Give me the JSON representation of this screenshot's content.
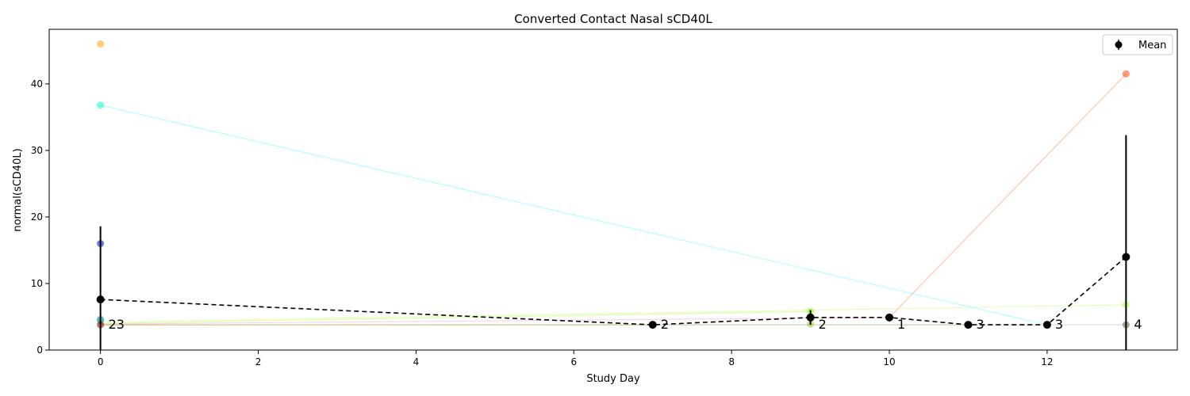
{
  "chart_data": {
    "type": "line",
    "title": "Converted Contact Nasal sCD40L",
    "xlabel": "Study Day",
    "ylabel": "normal(sCD40L)",
    "xlim": [
      -0.65,
      13.65
    ],
    "ylim": [
      0,
      48.2
    ],
    "xticks": [
      0,
      2,
      4,
      6,
      8,
      10,
      12
    ],
    "yticks": [
      0,
      10,
      20,
      30,
      40
    ],
    "grid": false,
    "legend": {
      "position": "top-right",
      "entries": [
        "Mean"
      ]
    },
    "series": [
      {
        "color": "#00ffff",
        "x": [
          0,
          12
        ],
        "y": [
          36.8,
          3.8
        ]
      },
      {
        "color": "#ff4500",
        "x": [
          10,
          13
        ],
        "y": [
          4.9,
          41.5
        ]
      },
      {
        "color": "#adff2f",
        "x": [
          0,
          13
        ],
        "y": [
          4.2,
          6.8
        ]
      },
      {
        "color": "#7fff00",
        "x": [
          0,
          9
        ],
        "y": [
          4.0,
          5.8
        ]
      },
      {
        "color": "#ff69b4",
        "x": [
          0,
          10
        ],
        "y": [
          3.9,
          4.9
        ]
      },
      {
        "color": "#9acd32",
        "x": [
          0,
          11
        ],
        "y": [
          3.8,
          3.8
        ]
      },
      {
        "color": "#808080",
        "x": [
          0,
          13
        ],
        "y": [
          3.8,
          3.8
        ]
      },
      {
        "color": "#daa520",
        "x": [
          0,
          7
        ],
        "y": [
          3.75,
          3.8
        ]
      }
    ],
    "points": [
      {
        "color": "#ffa500",
        "x": 0,
        "y": 46.0
      },
      {
        "color": "#00ffcc",
        "x": 0,
        "y": 36.8
      },
      {
        "color": "#0000cd",
        "x": 0,
        "y": 16.0
      },
      {
        "color": "#008b8b",
        "x": 0,
        "y": 4.6
      },
      {
        "color": "#20b2aa",
        "x": 0,
        "y": 4.4
      },
      {
        "color": "#8b0000",
        "x": 0,
        "y": 3.8
      },
      {
        "color": "#ff4500",
        "x": 13,
        "y": 41.5
      },
      {
        "color": "#adff2f",
        "x": 13,
        "y": 6.8
      },
      {
        "color": "#556b2f",
        "x": 13,
        "y": 3.8
      },
      {
        "color": "#7fff00",
        "x": 9,
        "y": 5.8
      },
      {
        "color": "#9acd32",
        "x": 9,
        "y": 3.9
      }
    ],
    "mean": {
      "name": "Mean",
      "color": "#000000",
      "x": [
        0,
        7,
        9,
        10,
        11,
        12,
        13
      ],
      "y": [
        7.6,
        3.8,
        4.9,
        4.9,
        3.8,
        3.8,
        14.0
      ],
      "err": [
        11.0,
        0,
        1.1,
        0,
        0,
        0,
        18.3
      ]
    },
    "counts": [
      {
        "x": 0,
        "y": 3.8,
        "label": "23"
      },
      {
        "x": 7,
        "y": 3.8,
        "label": "2"
      },
      {
        "x": 9,
        "y": 3.8,
        "label": "2"
      },
      {
        "x": 10,
        "y": 3.8,
        "label": "1"
      },
      {
        "x": 11,
        "y": 3.8,
        "label": "3"
      },
      {
        "x": 12,
        "y": 3.8,
        "label": "3"
      },
      {
        "x": 13,
        "y": 3.8,
        "label": "4"
      }
    ]
  }
}
